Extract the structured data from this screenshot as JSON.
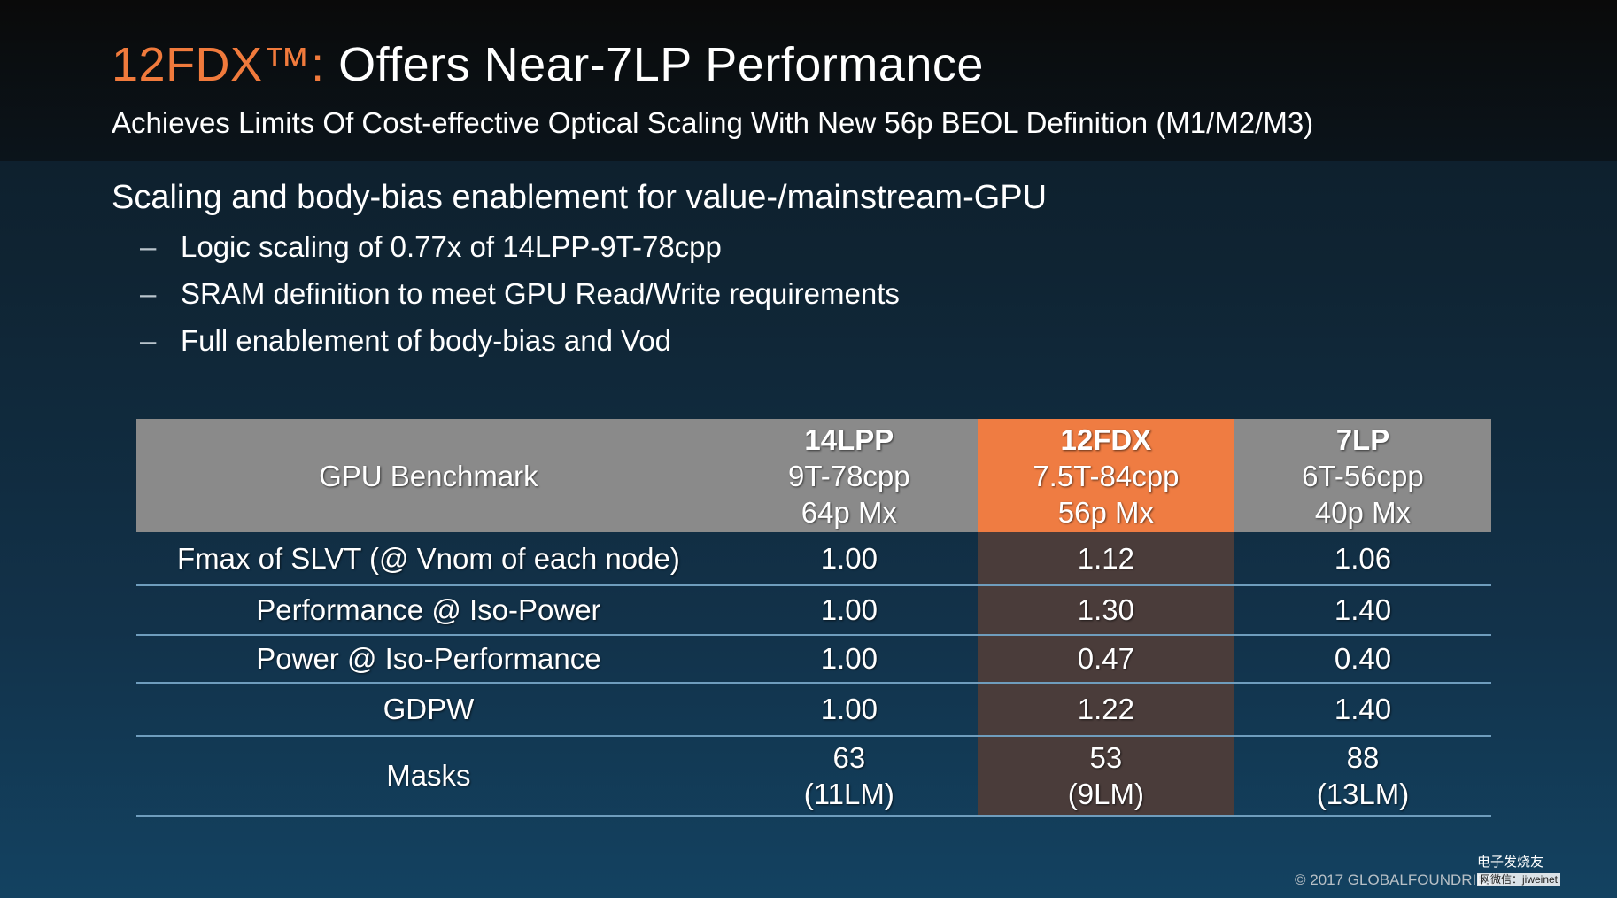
{
  "slide": {
    "title_accent": "12FDX™:",
    "title_rest": " Offers Near-7LP Performance",
    "subtitle": "Achieves Limits Of Cost-effective Optical Scaling With New 56p BEOL Definition (M1/M2/M3)",
    "section_heading": "Scaling and body-bias enablement for value-/mainstream-GPU",
    "bullets": [
      "Logic scaling of 0.77x of 14LPP-9T-78cpp",
      "SRAM definition to meet GPU Read/Write requirements",
      "Full enablement of body-bias and Vod"
    ],
    "bullet_marker": "–",
    "copyright": "© 2017 GLOBALFOUNDRIES",
    "watermark_line1": "电子发烧友",
    "watermark_line2": "网微信：jiweinet"
  },
  "table": {
    "header_label": "GPU Benchmark",
    "columns": [
      {
        "name": "14LPP",
        "line2": "9T-78cpp",
        "line3": "64p Mx"
      },
      {
        "name": "12FDX",
        "line2": "7.5T-84cpp",
        "line3": "56p Mx"
      },
      {
        "name": "7LP",
        "line2": "6T-56cpp",
        "line3": "40p Mx"
      }
    ],
    "rows": [
      {
        "label": "Fmax of SLVT (@ Vnom of each node)",
        "values": [
          "1.00",
          "1.12",
          "1.06"
        ]
      },
      {
        "label": "Performance @ Iso-Power",
        "values": [
          "1.00",
          "1.30",
          "1.40"
        ]
      },
      {
        "label": "Power @ Iso-Performance",
        "values": [
          "1.00",
          "0.47",
          "0.40"
        ]
      },
      {
        "label": "GDPW",
        "values": [
          "1.00",
          "1.22",
          "1.40"
        ]
      },
      {
        "label": "Masks",
        "values": [
          "63",
          "53",
          "88"
        ],
        "subvalues": [
          "(11LM)",
          "(9LM)",
          "(13LM)"
        ]
      }
    ]
  },
  "colors": {
    "accent_orange": "#f07a3c",
    "header_gray": "#8a8a8a",
    "highlight_orange": "#ef7c42",
    "highlight_cell": "#4a3c3a",
    "row_divider": "#6f9dbd"
  }
}
